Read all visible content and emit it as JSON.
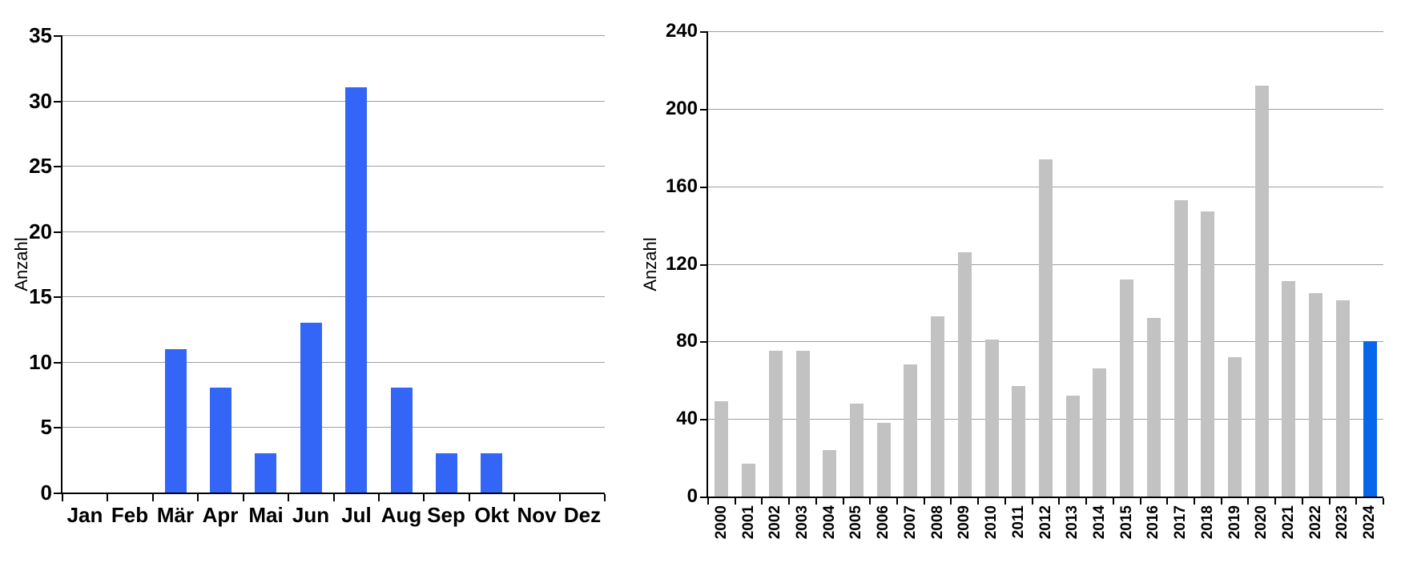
{
  "colors": {
    "background": "#ffffff",
    "axis": "#000000",
    "gridline": "#9f9f9f",
    "month_bar_blue": "#3365f6",
    "year_bar_gray": "#c2c2c2",
    "year_highlight_blue": "#0866eb"
  },
  "chart_data": [
    {
      "type": "bar",
      "title": "",
      "xlabel": "",
      "ylabel": "Anzahl",
      "categories": [
        "Jan",
        "Feb",
        "Mär",
        "Apr",
        "Mai",
        "Jun",
        "Jul",
        "Aug",
        "Sep",
        "Okt",
        "Nov",
        "Dez"
      ],
      "values": [
        0,
        0,
        11,
        8,
        3,
        13,
        31,
        8,
        3,
        3,
        0,
        0
      ],
      "ylim": [
        0,
        35
      ],
      "yticks": [
        0,
        5,
        10,
        15,
        20,
        25,
        30,
        35
      ],
      "grid": true,
      "legend_position": "none",
      "bar_color": "#3365f6"
    },
    {
      "type": "bar",
      "title": "",
      "xlabel": "",
      "ylabel": "Anzahl",
      "categories": [
        "2000",
        "2001",
        "2002",
        "2003",
        "2004",
        "2005",
        "2006",
        "2007",
        "2008",
        "2009",
        "2010",
        "2011",
        "2012",
        "2013",
        "2014",
        "2015",
        "2016",
        "2017",
        "2018",
        "2019",
        "2020",
        "2021",
        "2022",
        "2023",
        "2024"
      ],
      "values": [
        49,
        17,
        75,
        75,
        24,
        48,
        38,
        68,
        93,
        126,
        81,
        57,
        174,
        52,
        66,
        112,
        92,
        153,
        147,
        72,
        212,
        111,
        105,
        101,
        80
      ],
      "ylim": [
        0,
        240
      ],
      "yticks": [
        0,
        40,
        80,
        120,
        160,
        200,
        240
      ],
      "grid": true,
      "legend_position": "none",
      "bar_color": "#c2c2c2",
      "highlight": {
        "category": "2024",
        "index": 24,
        "color": "#0866eb"
      }
    }
  ]
}
